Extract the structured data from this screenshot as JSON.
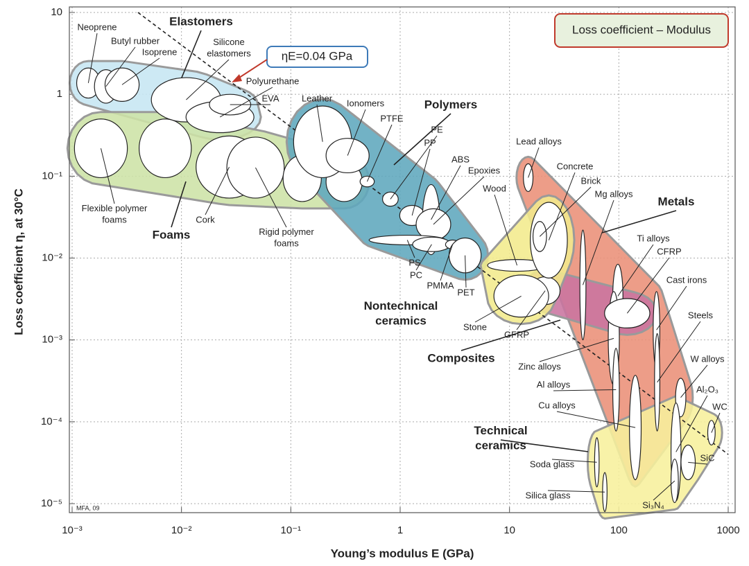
{
  "chart_data": {
    "type": "ellipse",
    "title": "Loss coefficient – Modulus",
    "credit": "MFA, 09",
    "x_label": "Young’s modulus E (GPa)",
    "y_label": "Loss coefficient η, at 30°C",
    "xscale": "log",
    "yscale": "log",
    "grid": true,
    "xlim": [
      0.001,
      1000
    ],
    "ylim": [
      1e-05,
      10
    ],
    "xticks": [
      {
        "value": 0.001,
        "label": "10⁻³"
      },
      {
        "value": 0.01,
        "label": "10⁻²"
      },
      {
        "value": 0.1,
        "label": "10⁻¹"
      },
      1,
      10,
      100,
      1000
    ],
    "yticks": [
      {
        "value": 1e-05,
        "label": "10⁻⁵"
      },
      {
        "value": 0.0001,
        "label": "10⁻⁴"
      },
      {
        "value": 0.001,
        "label": "10⁻³"
      },
      {
        "value": 0.01,
        "label": "10⁻²"
      },
      {
        "value": 0.1,
        "label": "10⁻¹"
      },
      1,
      10
    ],
    "guideline": {
      "label": "ηE=0.04 GPa",
      "value": 0.04
    },
    "families": [
      {
        "name": "Elastomers",
        "color": "#c6e6f3",
        "materials": [
          {
            "name": "Neoprene",
            "E": [
              0.0011,
              0.0018
            ],
            "loss": [
              0.9,
              2.1
            ]
          },
          {
            "name": "Butyl rubber",
            "E": [
              0.0016,
              0.0026
            ],
            "loss": [
              0.78,
              2.0
            ]
          },
          {
            "name": "Isoprene",
            "E": [
              0.002,
              0.0041
            ],
            "loss": [
              0.82,
              2.1
            ]
          },
          {
            "name": "Silicone elastomers",
            "E": [
              0.0053,
              0.023
            ],
            "loss": [
              0.46,
              1.6
            ]
          },
          {
            "name": "Polyurethane",
            "E": [
              0.011,
              0.046
            ],
            "loss": [
              0.34,
              0.82
            ]
          },
          {
            "name": "EVA",
            "E": [
              0.018,
              0.043
            ],
            "loss": [
              0.56,
              1.0
            ]
          }
        ]
      },
      {
        "name": "Foams",
        "color": "#cde3a6",
        "materials": [
          {
            "name": "Flexible polymer foams",
            "E": [
              0.00105,
              0.0032
            ],
            "loss": [
              0.096,
              0.5
            ]
          },
          {
            "name": null,
            "E": [
              0.0041,
              0.0123
            ],
            "loss": [
              0.096,
              0.5
            ]
          },
          {
            "name": "Cork",
            "E": [
              0.0136,
              0.055
            ],
            "loss": [
              0.054,
              0.31
            ]
          },
          {
            "name": "Rigid polymer foams",
            "E": [
              0.026,
              0.087
            ],
            "loss": [
              0.054,
              0.3
            ]
          },
          {
            "name": null,
            "E": [
              0.085,
              0.19
            ],
            "loss": [
              0.049,
              0.18
            ]
          },
          {
            "name": null,
            "E": [
              0.21,
              0.45
            ],
            "loss": [
              0.049,
              0.15
            ]
          }
        ]
      },
      {
        "name": "Polymers",
        "color": "#5ea7bd",
        "materials": [
          {
            "name": "Leather",
            "E": [
              0.106,
              0.36
            ],
            "loss": [
              0.096,
              0.72
            ]
          },
          {
            "name": "Ionomers",
            "E": [
              0.21,
              0.52
            ],
            "loss": [
              0.11,
              0.29
            ]
          },
          {
            "name": "PTFE",
            "E": [
              0.43,
              0.58
            ],
            "loss": [
              0.074,
              0.1
            ]
          },
          {
            "name": "PE",
            "E": [
              0.69,
              0.96
            ],
            "loss": [
              0.043,
              0.064
            ]
          },
          {
            "name": "PP",
            "E": [
              0.99,
              1.67
            ],
            "loss": [
              0.025,
              0.044
            ]
          },
          {
            "name": "ABS",
            "E": [
              1.6,
              2.3
            ],
            "loss": [
              0.011,
              0.079
            ]
          },
          {
            "name": "Epoxies",
            "E": [
              1.4,
              2.9
            ],
            "loss": [
              0.0166,
              0.04
            ]
          },
          {
            "name": "PS",
            "E": [
              0.52,
              2.6
            ],
            "loss": [
              0.0145,
              0.019
            ]
          },
          {
            "name": "PC",
            "E": [
              1.3,
              2.9
            ],
            "loss": [
              0.012,
              0.018
            ]
          },
          {
            "name": "PMMA",
            "E": [
              2.6,
              3.5
            ],
            "loss": [
              0.0129,
              0.0166
            ]
          },
          {
            "name": "PET",
            "E": [
              2.8,
              5.5
            ],
            "loss": [
              0.0066,
              0.0176
            ]
          }
        ]
      },
      {
        "name": "Metals",
        "color": "#eb8f78",
        "materials": [
          {
            "name": "Lead alloys",
            "E": [
              13.4,
              16.4
            ],
            "loss": [
              0.065,
              0.142
            ]
          },
          {
            "name": "Mg alloys",
            "E": [
              44,
              50
            ],
            "loss": [
              0.001,
              0.022
            ]
          },
          {
            "name": "Ti alloys",
            "E": [
              88,
              109
            ],
            "loss": [
              0.0014,
              0.0084
            ]
          },
          {
            "name": "Cast irons",
            "E": [
              206,
              237
            ],
            "loss": [
              0.00045,
              0.0039
            ]
          },
          {
            "name": "Steels",
            "E": [
              212,
              237
            ],
            "loss": [
              7.7e-05,
              0.0012
            ]
          },
          {
            "name": "Zinc alloys",
            "E": [
              80,
              101
            ],
            "loss": [
              0.00028,
              0.0039
            ]
          },
          {
            "name": "Al alloys",
            "E": [
              88,
              101
            ],
            "loss": [
              7.7e-05,
              0.00079
            ]
          },
          {
            "name": "Cu alloys",
            "E": [
              125,
              160
            ],
            "loss": [
              1.96e-05,
              0.00037
            ]
          },
          {
            "name": "W alloys",
            "E": [
              330,
              410
            ],
            "loss": [
              0.000115,
              0.00034
            ]
          }
        ]
      },
      {
        "name": "Composites",
        "color": "#c9749f",
        "materials": [
          {
            "name": "CFRP",
            "E": [
              74,
              192
            ],
            "loss": [
              0.0014,
              0.0032
            ]
          },
          {
            "name": "GFRP",
            "E": [
              15.5,
              29
            ],
            "loss": [
              0.0027,
              0.0059
            ]
          }
        ]
      },
      {
        "name": "Nontechnical ceramics",
        "color": "#f3ea8c",
        "materials": [
          {
            "name": "Wood",
            "E": [
              6.3,
              21.8
            ],
            "loss": [
              0.0069,
              0.0096
            ]
          },
          {
            "name": "Stone",
            "E": [
              7.2,
              22.8
            ],
            "loss": [
              0.0019,
              0.0062
            ]
          },
          {
            "name": "Concrete",
            "E": [
              15.5,
              33.8
            ],
            "loss": [
              0.0057,
              0.048
            ]
          },
          {
            "name": "Brick",
            "E": [
              16.4,
              21.8
            ],
            "loss": [
              0.012,
              0.028
            ]
          }
        ]
      },
      {
        "name": "Technical ceramics",
        "color": "#f7f09c",
        "materials": [
          {
            "name": "Al₂O₃",
            "E": [
              300,
              370
            ],
            "loss": [
              1.08e-05,
              0.00017
            ]
          },
          {
            "name": "WC",
            "E": [
              650,
              760
            ],
            "loss": [
              5.2e-05,
              0.000104
            ]
          },
          {
            "name": "SiC",
            "E": [
              370,
              500
            ],
            "loss": [
              1.96e-05,
              5.2e-05
            ]
          },
          {
            "name": "Si₃N₄",
            "E": [
              300,
              350
            ],
            "loss": [
              1.03e-05,
              3.5e-05
            ]
          },
          {
            "name": "Soda glass",
            "E": [
              60,
              66
            ],
            "loss": [
              1.6e-05,
              6.4e-05
            ]
          },
          {
            "name": "Silica glass",
            "E": [
              71,
              78
            ],
            "loss": [
              8e-06,
              2.4e-05
            ]
          }
        ]
      }
    ]
  }
}
